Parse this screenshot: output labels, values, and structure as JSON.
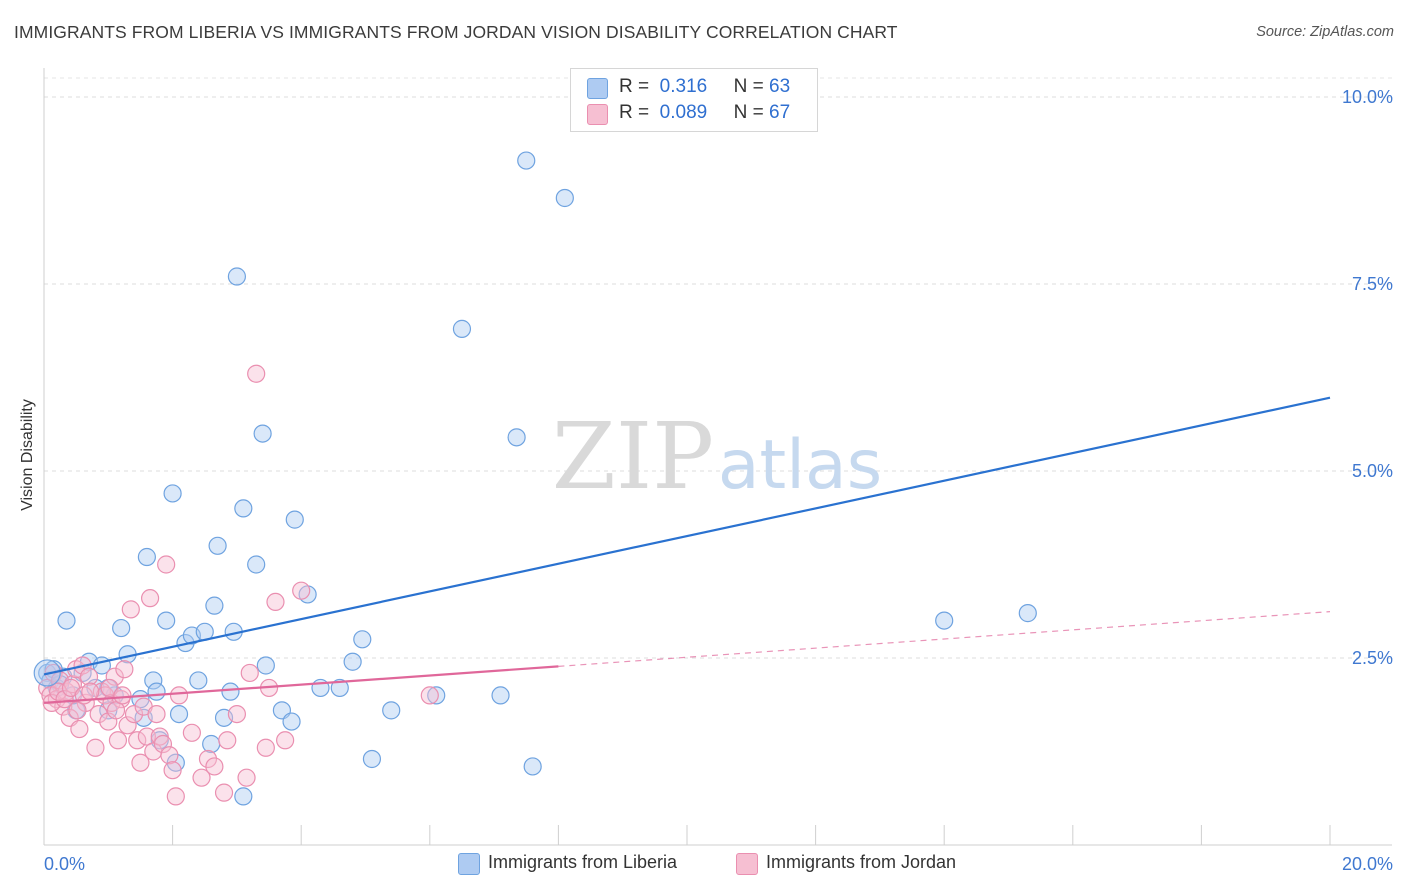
{
  "chart_data": {
    "type": "scatter",
    "title": "IMMIGRANTS FROM LIBERIA VS IMMIGRANTS FROM JORDAN VISION DISABILITY CORRELATION CHART",
    "source": "Source: ZipAtlas.com",
    "watermark": {
      "zip": "ZIP",
      "atlas": "atlas"
    },
    "ylabel": "Vision Disability",
    "xlim": [
      0,
      20
    ],
    "ylim": [
      0,
      10.5
    ],
    "x_tick_labels": [
      "0.0%",
      "20.0%"
    ],
    "y_ticks": [
      {
        "value": 2.5,
        "label": "2.5%"
      },
      {
        "value": 5.0,
        "label": "5.0%"
      },
      {
        "value": 7.5,
        "label": "7.5%"
      },
      {
        "value": 10.0,
        "label": "10.0%"
      }
    ],
    "legend": [
      {
        "r_label": "R =",
        "r_value": "0.316",
        "n_label": "N =",
        "n_value": "63"
      },
      {
        "r_label": "R =",
        "r_value": "0.089",
        "n_label": "N =",
        "n_value": "67"
      }
    ],
    "series": [
      {
        "name": "Immigrants from Liberia",
        "color": "#6fa3e0",
        "fill": "#aecbf2",
        "line_color": "#2a72d0",
        "trend": {
          "x0": 0,
          "y0": 2.28,
          "x1": 20,
          "y1": 5.98,
          "dashed_from": null
        },
        "points": [
          [
            0.05,
            2.3
          ],
          [
            0.1,
            2.2
          ],
          [
            0.2,
            2.1
          ],
          [
            0.3,
            2.25
          ],
          [
            0.35,
            3.0
          ],
          [
            0.5,
            1.8
          ],
          [
            0.6,
            2.3
          ],
          [
            0.7,
            2.45
          ],
          [
            0.8,
            2.1
          ],
          [
            0.9,
            2.4
          ],
          [
            1.0,
            1.8
          ],
          [
            1.1,
            2.0
          ],
          [
            1.2,
            2.9
          ],
          [
            1.3,
            2.55
          ],
          [
            1.5,
            1.95
          ],
          [
            1.55,
            1.7
          ],
          [
            1.6,
            3.85
          ],
          [
            1.7,
            2.2
          ],
          [
            1.75,
            2.05
          ],
          [
            1.8,
            1.4
          ],
          [
            1.9,
            3.0
          ],
          [
            2.0,
            4.7
          ],
          [
            2.05,
            1.1
          ],
          [
            2.1,
            1.75
          ],
          [
            2.2,
            2.7
          ],
          [
            2.3,
            2.8
          ],
          [
            2.4,
            2.2
          ],
          [
            2.5,
            2.85
          ],
          [
            2.6,
            1.35
          ],
          [
            2.65,
            3.2
          ],
          [
            2.7,
            4.0
          ],
          [
            2.8,
            1.7
          ],
          [
            2.9,
            2.05
          ],
          [
            2.95,
            2.85
          ],
          [
            3.0,
            7.6
          ],
          [
            3.1,
            4.5
          ],
          [
            3.1,
            0.65
          ],
          [
            3.3,
            3.75
          ],
          [
            3.4,
            5.5
          ],
          [
            3.45,
            2.4
          ],
          [
            3.7,
            1.8
          ],
          [
            3.85,
            1.65
          ],
          [
            3.9,
            4.35
          ],
          [
            4.1,
            3.35
          ],
          [
            4.3,
            2.1
          ],
          [
            4.6,
            2.1
          ],
          [
            4.8,
            2.45
          ],
          [
            4.95,
            2.75
          ],
          [
            5.1,
            1.15
          ],
          [
            5.4,
            1.8
          ],
          [
            6.1,
            2.0
          ],
          [
            6.5,
            6.9
          ],
          [
            7.1,
            2.0
          ],
          [
            7.35,
            5.45
          ],
          [
            7.5,
            9.15
          ],
          [
            7.6,
            1.05
          ],
          [
            8.1,
            8.65
          ],
          [
            14.0,
            3.0
          ],
          [
            15.3,
            3.1
          ],
          [
            0.15,
            2.35
          ],
          [
            0.25,
            2.15
          ],
          [
            0.45,
            2.0
          ],
          [
            1.0,
            2.1
          ]
        ]
      },
      {
        "name": "Immigrants from Jordan",
        "color": "#ea8fb0",
        "fill": "#f6bfd2",
        "line_color": "#e0679a",
        "trend": {
          "x0": 0,
          "y0": 1.9,
          "x1": 20,
          "y1": 3.12,
          "dashed_from": 8.0
        },
        "points": [
          [
            0.05,
            2.1
          ],
          [
            0.1,
            2.0
          ],
          [
            0.15,
            2.3
          ],
          [
            0.2,
            1.95
          ],
          [
            0.25,
            2.2
          ],
          [
            0.3,
            1.85
          ],
          [
            0.35,
            2.05
          ],
          [
            0.4,
            1.7
          ],
          [
            0.45,
            2.15
          ],
          [
            0.5,
            2.35
          ],
          [
            0.55,
            1.55
          ],
          [
            0.6,
            2.4
          ],
          [
            0.65,
            1.9
          ],
          [
            0.7,
            2.25
          ],
          [
            0.8,
            1.3
          ],
          [
            0.85,
            1.75
          ],
          [
            0.9,
            2.05
          ],
          [
            0.95,
            2.0
          ],
          [
            1.0,
            1.65
          ],
          [
            1.05,
            1.9
          ],
          [
            1.1,
            2.25
          ],
          [
            1.15,
            1.4
          ],
          [
            1.2,
            1.95
          ],
          [
            1.25,
            2.35
          ],
          [
            1.3,
            1.6
          ],
          [
            1.35,
            3.15
          ],
          [
            1.4,
            1.75
          ],
          [
            1.45,
            1.4
          ],
          [
            1.5,
            1.1
          ],
          [
            1.55,
            1.85
          ],
          [
            1.6,
            1.45
          ],
          [
            1.65,
            3.3
          ],
          [
            1.7,
            1.25
          ],
          [
            1.75,
            1.75
          ],
          [
            1.8,
            1.45
          ],
          [
            1.85,
            1.35
          ],
          [
            1.9,
            3.75
          ],
          [
            1.95,
            1.2
          ],
          [
            2.0,
            1.0
          ],
          [
            2.05,
            0.65
          ],
          [
            2.1,
            2.0
          ],
          [
            2.3,
            1.5
          ],
          [
            2.45,
            0.9
          ],
          [
            2.55,
            1.15
          ],
          [
            2.65,
            1.05
          ],
          [
            2.8,
            0.7
          ],
          [
            2.85,
            1.4
          ],
          [
            3.0,
            1.75
          ],
          [
            3.15,
            0.9
          ],
          [
            3.2,
            2.3
          ],
          [
            3.3,
            6.3
          ],
          [
            3.45,
            1.3
          ],
          [
            3.5,
            2.1
          ],
          [
            3.6,
            3.25
          ],
          [
            3.75,
            1.4
          ],
          [
            4.0,
            3.4
          ],
          [
            6.0,
            2.0
          ],
          [
            0.12,
            1.9
          ],
          [
            0.22,
            2.05
          ],
          [
            0.32,
            1.95
          ],
          [
            0.42,
            2.1
          ],
          [
            0.52,
            1.8
          ],
          [
            0.62,
            2.0
          ],
          [
            0.72,
            2.05
          ],
          [
            1.02,
            2.1
          ],
          [
            1.12,
            1.8
          ],
          [
            1.22,
            2.0
          ]
        ]
      }
    ]
  }
}
